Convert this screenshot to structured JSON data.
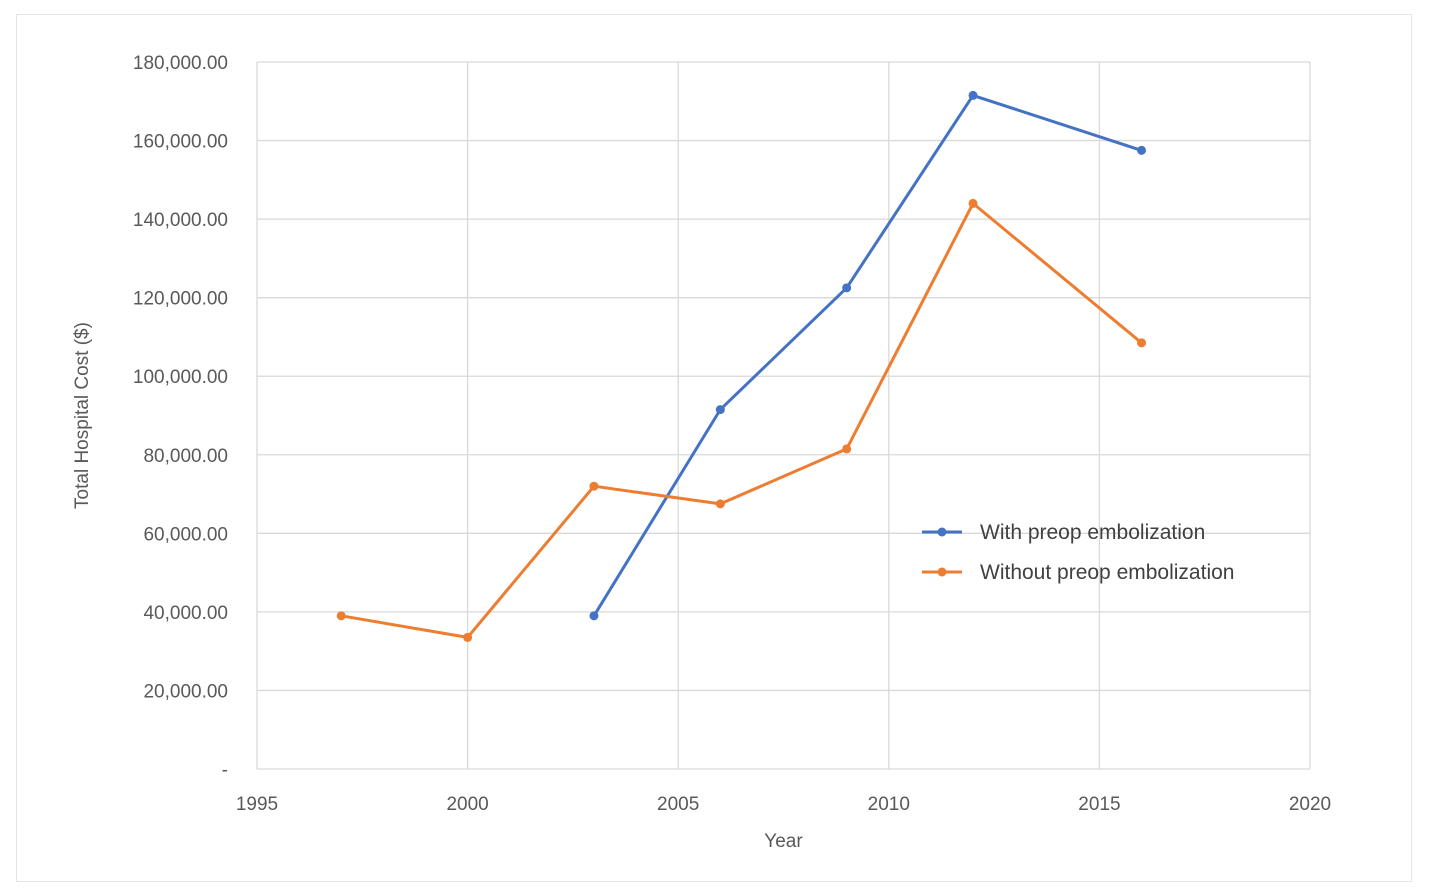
{
  "chart_data": {
    "type": "line",
    "title": "",
    "xlabel": "Year",
    "ylabel": "Total Hospital Cost ($)",
    "xlim": [
      1995,
      2020
    ],
    "ylim": [
      0,
      180000
    ],
    "x_ticks": [
      "1995",
      "2000",
      "2005",
      "2010",
      "2015",
      "2020"
    ],
    "y_ticks": [
      "-",
      "20,000.00",
      "40,000.00",
      "60,000.00",
      "80,000.00",
      "100,000.00",
      "120,000.00",
      "140,000.00",
      "160,000.00",
      "180,000.00"
    ],
    "grid": true,
    "legend_position": "right",
    "series": [
      {
        "name": "With preop embolization",
        "color": "#4472C4",
        "points": [
          {
            "x": 2003,
            "y": 39000
          },
          {
            "x": 2006,
            "y": 91500
          },
          {
            "x": 2009,
            "y": 122500
          },
          {
            "x": 2012,
            "y": 171500
          },
          {
            "x": 2016,
            "y": 157500
          }
        ]
      },
      {
        "name": "Without preop embolization",
        "color": "#ED7D31",
        "points": [
          {
            "x": 1997,
            "y": 39000
          },
          {
            "x": 2000,
            "y": 33500
          },
          {
            "x": 2003,
            "y": 72000
          },
          {
            "x": 2006,
            "y": 67500
          },
          {
            "x": 2009,
            "y": 81500
          },
          {
            "x": 2012,
            "y": 144000
          },
          {
            "x": 2016,
            "y": 108500
          }
        ]
      }
    ]
  }
}
